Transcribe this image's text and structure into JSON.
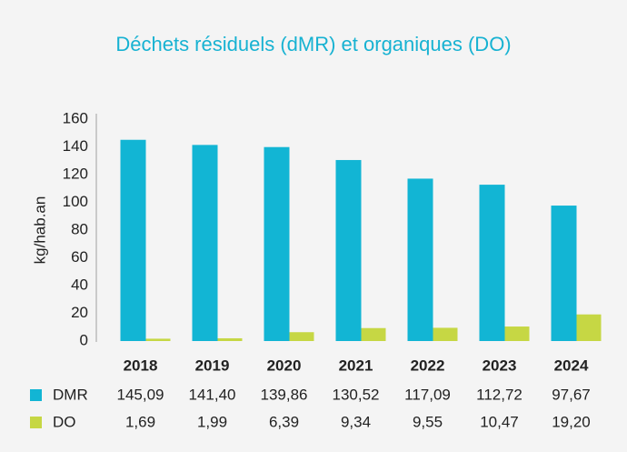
{
  "chart_data": {
    "type": "bar",
    "title": "Déchets résiduels (dMR) et organiques (DO)",
    "y_label": "kg/hab.an",
    "categories": [
      "2018",
      "2019",
      "2020",
      "2021",
      "2022",
      "2023",
      "2024"
    ],
    "series": [
      {
        "name": "DMR",
        "color": "#12b5d4",
        "values": [
          145.09,
          141.4,
          139.86,
          130.52,
          117.09,
          112.72,
          97.67
        ],
        "value_labels": [
          "145,09",
          "141,40",
          "139,86",
          "130,52",
          "117,09",
          "112,72",
          "97,67"
        ]
      },
      {
        "name": "DO",
        "color": "#c6d744",
        "values": [
          1.69,
          1.99,
          6.39,
          9.34,
          9.55,
          10.47,
          19.2
        ],
        "value_labels": [
          "1,69",
          "1,99",
          "6,39",
          "9,34",
          "9,55",
          "10,47",
          "19,20"
        ]
      }
    ],
    "ylim": [
      0,
      160
    ],
    "yticks": [
      0,
      20,
      40,
      60,
      80,
      100,
      120,
      140,
      160
    ]
  }
}
